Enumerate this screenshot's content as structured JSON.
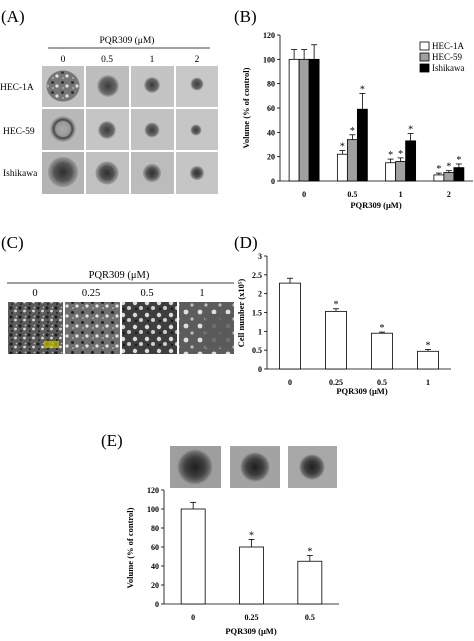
{
  "panels": {
    "a": {
      "label": "(A)",
      "header": "PQR309 (μM)",
      "concentrations": [
        "0",
        "0.5",
        "1",
        "2"
      ],
      "rows": [
        "HEC-1A",
        "HEC-59",
        "Ishikawa"
      ]
    },
    "c": {
      "label": "(C)",
      "header": "PQR309 (μM)",
      "concentrations": [
        "0",
        "0.25",
        "0.5",
        "1"
      ]
    },
    "e": {
      "label": "(E)"
    }
  },
  "chart_data": [
    {
      "id": "B",
      "label": "(B)",
      "type": "bar",
      "categories": [
        "0",
        "0.5",
        "1",
        "2"
      ],
      "series": [
        {
          "name": "HEC-1A",
          "values": [
            100,
            22,
            15,
            5
          ],
          "errors": [
            8,
            3,
            3,
            1.5
          ],
          "significant": [
            false,
            true,
            true,
            true
          ],
          "color": "#ffffff"
        },
        {
          "name": "HEC-59",
          "values": [
            100,
            34,
            16,
            7
          ],
          "errors": [
            8,
            4,
            3,
            1.5
          ],
          "significant": [
            false,
            true,
            true,
            true
          ],
          "color": "#a0a0a0"
        },
        {
          "name": "Ishikawa",
          "values": [
            100,
            59,
            33,
            11
          ],
          "errors": [
            12,
            13,
            6,
            3
          ],
          "significant": [
            false,
            true,
            true,
            true
          ],
          "color": "#000000"
        }
      ],
      "xlabel": "PQR309 (μM)",
      "ylabel": "Volume (% of control)",
      "ylim": [
        0,
        120
      ],
      "yticks": [
        0,
        20,
        40,
        60,
        80,
        100,
        120
      ],
      "significance_marker": "*",
      "legend_position": "top-right",
      "grid": false
    },
    {
      "id": "D",
      "label": "(D)",
      "type": "bar",
      "categories": [
        "0",
        "0.25",
        "0.5",
        "1"
      ],
      "values": [
        2.28,
        1.53,
        0.95,
        0.47
      ],
      "errors": [
        0.13,
        0.07,
        0.03,
        0.05
      ],
      "significant": [
        false,
        true,
        true,
        true
      ],
      "color": "#ffffff",
      "xlabel": "PQR309 (μM)",
      "ylabel": "Cell number (x10⁵)",
      "ylim": [
        0,
        3
      ],
      "yticks": [
        0,
        0.5,
        1,
        1.5,
        2,
        2.5,
        3
      ],
      "significance_marker": "*",
      "grid": false
    },
    {
      "id": "E",
      "label": "(E)",
      "type": "bar",
      "categories": [
        "0",
        "0.25",
        "0.5"
      ],
      "values": [
        100,
        60,
        45
      ],
      "errors": [
        7,
        8,
        6
      ],
      "significant": [
        false,
        true,
        true
      ],
      "color": "#ffffff",
      "xlabel": "PQR309 (μM)",
      "ylabel": "Volume (% of control)",
      "ylim": [
        0,
        120
      ],
      "yticks": [
        0,
        20,
        40,
        60,
        80,
        100,
        120
      ],
      "significance_marker": "*",
      "grid": false
    }
  ]
}
